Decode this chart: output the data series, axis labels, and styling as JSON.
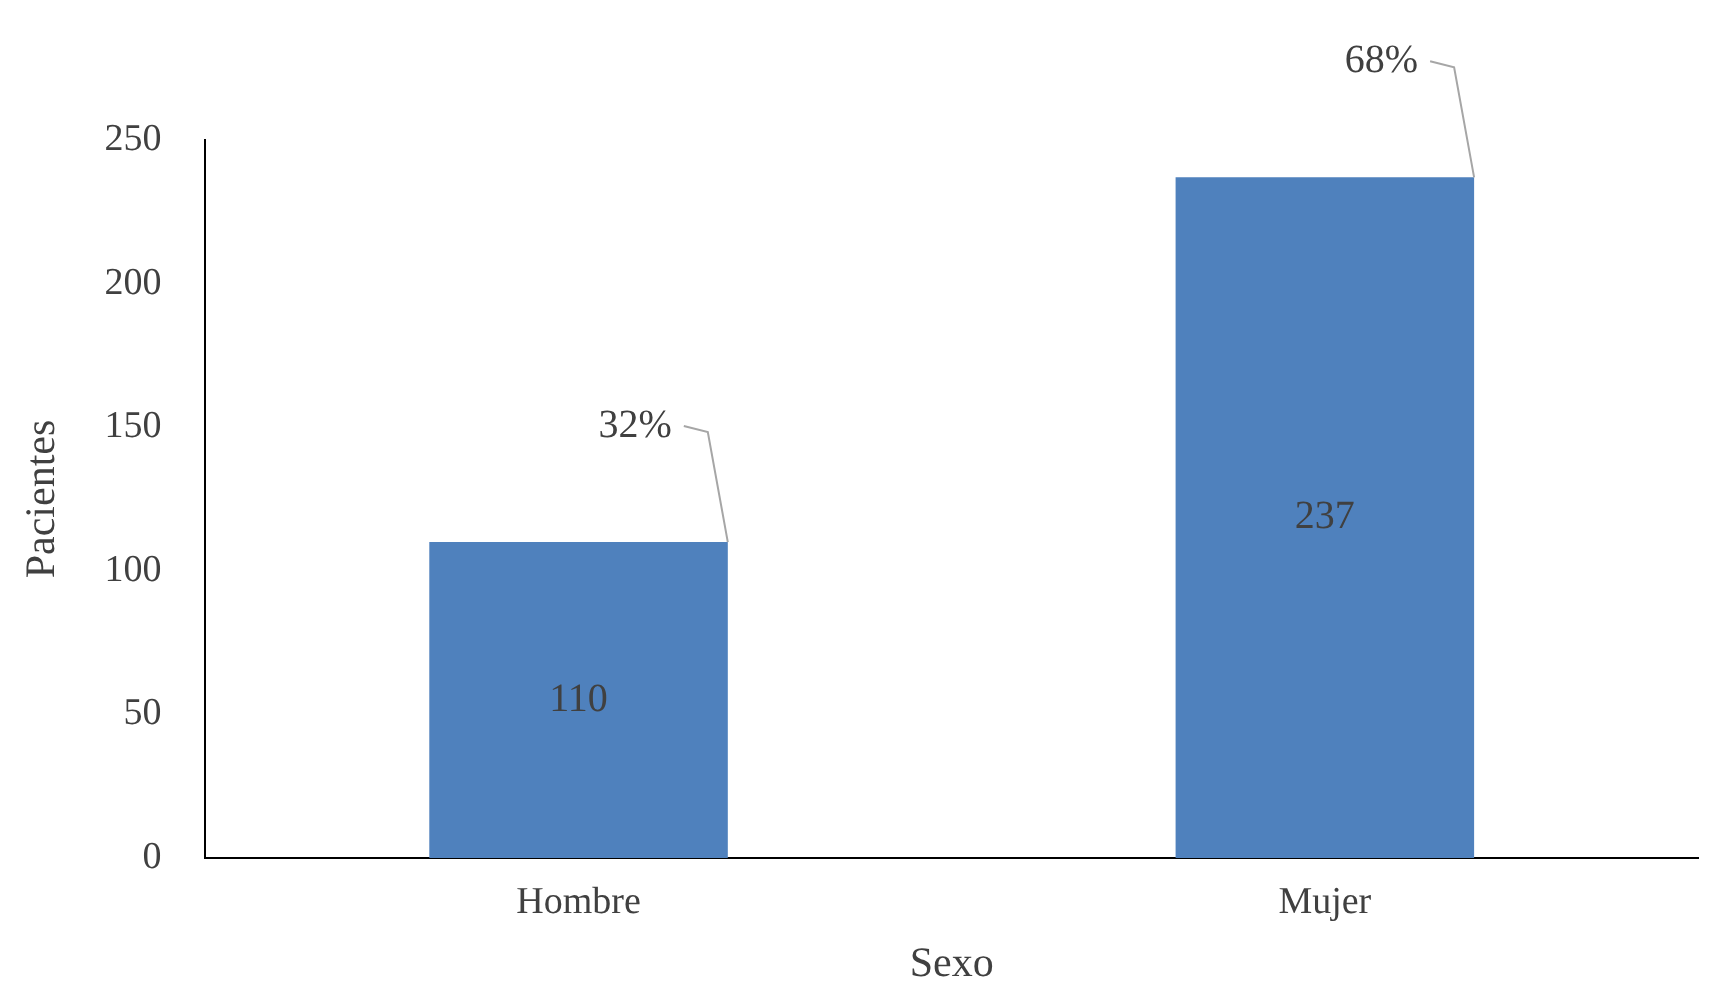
{
  "chart_data": {
    "type": "bar",
    "xlabel": "Sexo",
    "ylabel": "Pacientes",
    "categories": [
      "Hombre",
      "Mujer"
    ],
    "values": [
      110,
      237
    ],
    "color": "#4f81bd",
    "ylim": [
      0,
      250
    ],
    "yticks": [
      0,
      50,
      100,
      150,
      200,
      250
    ],
    "grid": false,
    "legend": false,
    "data_labels": true,
    "annotations": [
      {
        "text": "32%",
        "x": "Hombre",
        "y": 110
      },
      {
        "text": "68%",
        "x": "Mujer",
        "y": 237
      }
    ]
  }
}
